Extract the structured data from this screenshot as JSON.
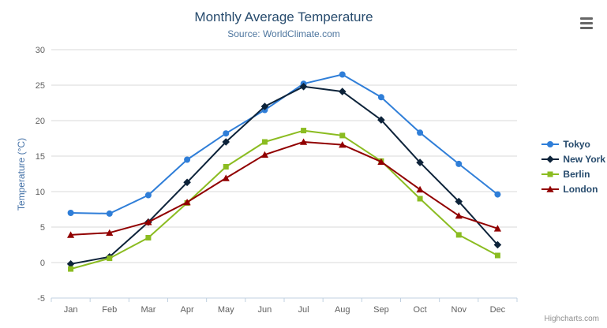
{
  "title": "Monthly Average Temperature",
  "subtitle": "Source: WorldClimate.com",
  "credits": "Highcharts.com",
  "menu_icon": "hamburger-menu-icon",
  "chart_data": {
    "type": "line",
    "categories": [
      "Jan",
      "Feb",
      "Mar",
      "Apr",
      "May",
      "Jun",
      "Jul",
      "Aug",
      "Sep",
      "Oct",
      "Nov",
      "Dec"
    ],
    "series": [
      {
        "name": "Tokyo",
        "color": "#2f7ed8",
        "marker": "circle",
        "values": [
          7.0,
          6.9,
          9.5,
          14.5,
          18.2,
          21.5,
          25.2,
          26.5,
          23.3,
          18.3,
          13.9,
          9.6
        ]
      },
      {
        "name": "New York",
        "color": "#0d233a",
        "marker": "diamond",
        "values": [
          -0.2,
          0.8,
          5.7,
          11.3,
          17.0,
          22.0,
          24.8,
          24.1,
          20.1,
          14.1,
          8.6,
          2.5
        ]
      },
      {
        "name": "Berlin",
        "color": "#8bbc21",
        "marker": "square",
        "values": [
          -0.9,
          0.6,
          3.5,
          8.4,
          13.5,
          17.0,
          18.6,
          17.9,
          14.3,
          9.0,
          3.9,
          1.0
        ]
      },
      {
        "name": "London",
        "color": "#910000",
        "marker": "triangle",
        "values": [
          3.9,
          4.2,
          5.7,
          8.5,
          11.9,
          15.2,
          17.0,
          16.6,
          14.2,
          10.3,
          6.6,
          4.8
        ]
      }
    ],
    "title": "Monthly Average Temperature",
    "xlabel": "",
    "ylabel": "Temperature (°C)",
    "ylim": [
      -5,
      30
    ],
    "ytick_interval": 5,
    "grid": true,
    "gridline_color": "#d8d8d8",
    "axis_line_color": "#c0d0e0",
    "legend_position": "right"
  }
}
